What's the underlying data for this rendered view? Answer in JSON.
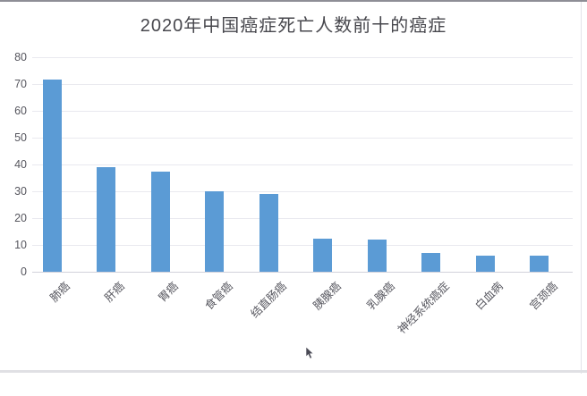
{
  "window": {
    "background": "#ffffff",
    "border_top_color": "#8e8e96",
    "border_side_color": "#e3e3e9",
    "border_bottom_color": "#e0e0e4"
  },
  "chart_data": {
    "type": "bar",
    "title": "2020年中国癌症死亡人数前十的癌症",
    "categories": [
      "肺癌",
      "肝癌",
      "胃癌",
      "食管癌",
      "结直肠癌",
      "胰腺癌",
      "乳腺癌",
      "神经系统癌症",
      "白血病",
      "宫颈癌"
    ],
    "values": [
      71.5,
      39.1,
      37.4,
      30.1,
      28.9,
      12.2,
      11.9,
      7.0,
      6.1,
      5.9
    ],
    "xlabel": "",
    "ylabel": "",
    "ylim": [
      0,
      80
    ],
    "yticks": [
      0,
      10,
      20,
      30,
      40,
      50,
      60,
      70,
      80
    ],
    "grid": "horizontal",
    "legend_position": "none",
    "bar_color": "#5b9bd5",
    "title_color": "#47474d",
    "tick_label_color": "#57575f",
    "gridline_color": "#e9e9ef",
    "axis_line_color": "#d2d2da"
  },
  "cursor": {
    "type": "arrow-pointer",
    "color": "#4a4a55"
  }
}
